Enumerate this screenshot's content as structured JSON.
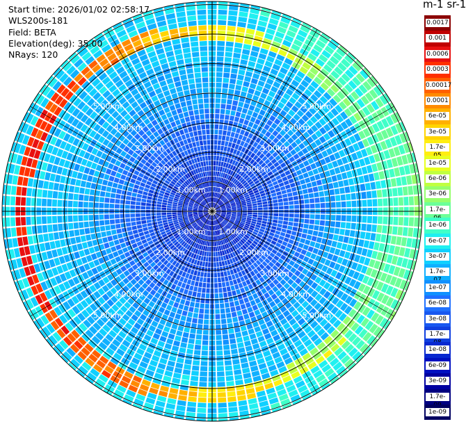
{
  "header": {
    "start_time": "Start time: 2026/01/02 02:58:17",
    "device": "WLS200s-181",
    "field": "Field: BETA",
    "elevation": "Elevation(deg): 35.00",
    "nrays": "NRays: 120"
  },
  "colorbar": {
    "unit_title": "m-1 sr-1",
    "labels": [
      "0.0017",
      "0.001",
      "0.0006",
      "0.0003",
      "0.00017",
      "0.0001",
      "6e-05",
      "3e-05",
      "1.7e-05",
      "1e-05",
      "6e-06",
      "3e-06",
      "1.7e-06",
      "1e-06",
      "6e-07",
      "3e-07",
      "1.7e-07",
      "1e-07",
      "6e-08",
      "3e-08",
      "1.7e-08",
      "1e-08",
      "6e-09",
      "3e-09",
      "1.7e-09",
      "1e-09"
    ],
    "colors": [
      "#8b0000",
      "#c00000",
      "#e81010",
      "#ff3000",
      "#ff6000",
      "#ff8a00",
      "#ffb000",
      "#ffd400",
      "#ffee10",
      "#e8ff20",
      "#c0ff40",
      "#96ff6c",
      "#6cff98",
      "#40ffc8",
      "#20f0f0",
      "#10d0ff",
      "#10b0ff",
      "#1090ff",
      "#2070ff",
      "#1858f0",
      "#1040e0",
      "#0828d0",
      "#0010c0",
      "#0000a0",
      "#000080",
      "#000060"
    ]
  },
  "range_rings": {
    "labels": [
      "1.00km",
      "2.00km",
      "3.00km",
      "4.00km",
      "5.00km"
    ]
  },
  "scan": {
    "nrays": 120,
    "ring_value_log10": -3.5
  }
}
